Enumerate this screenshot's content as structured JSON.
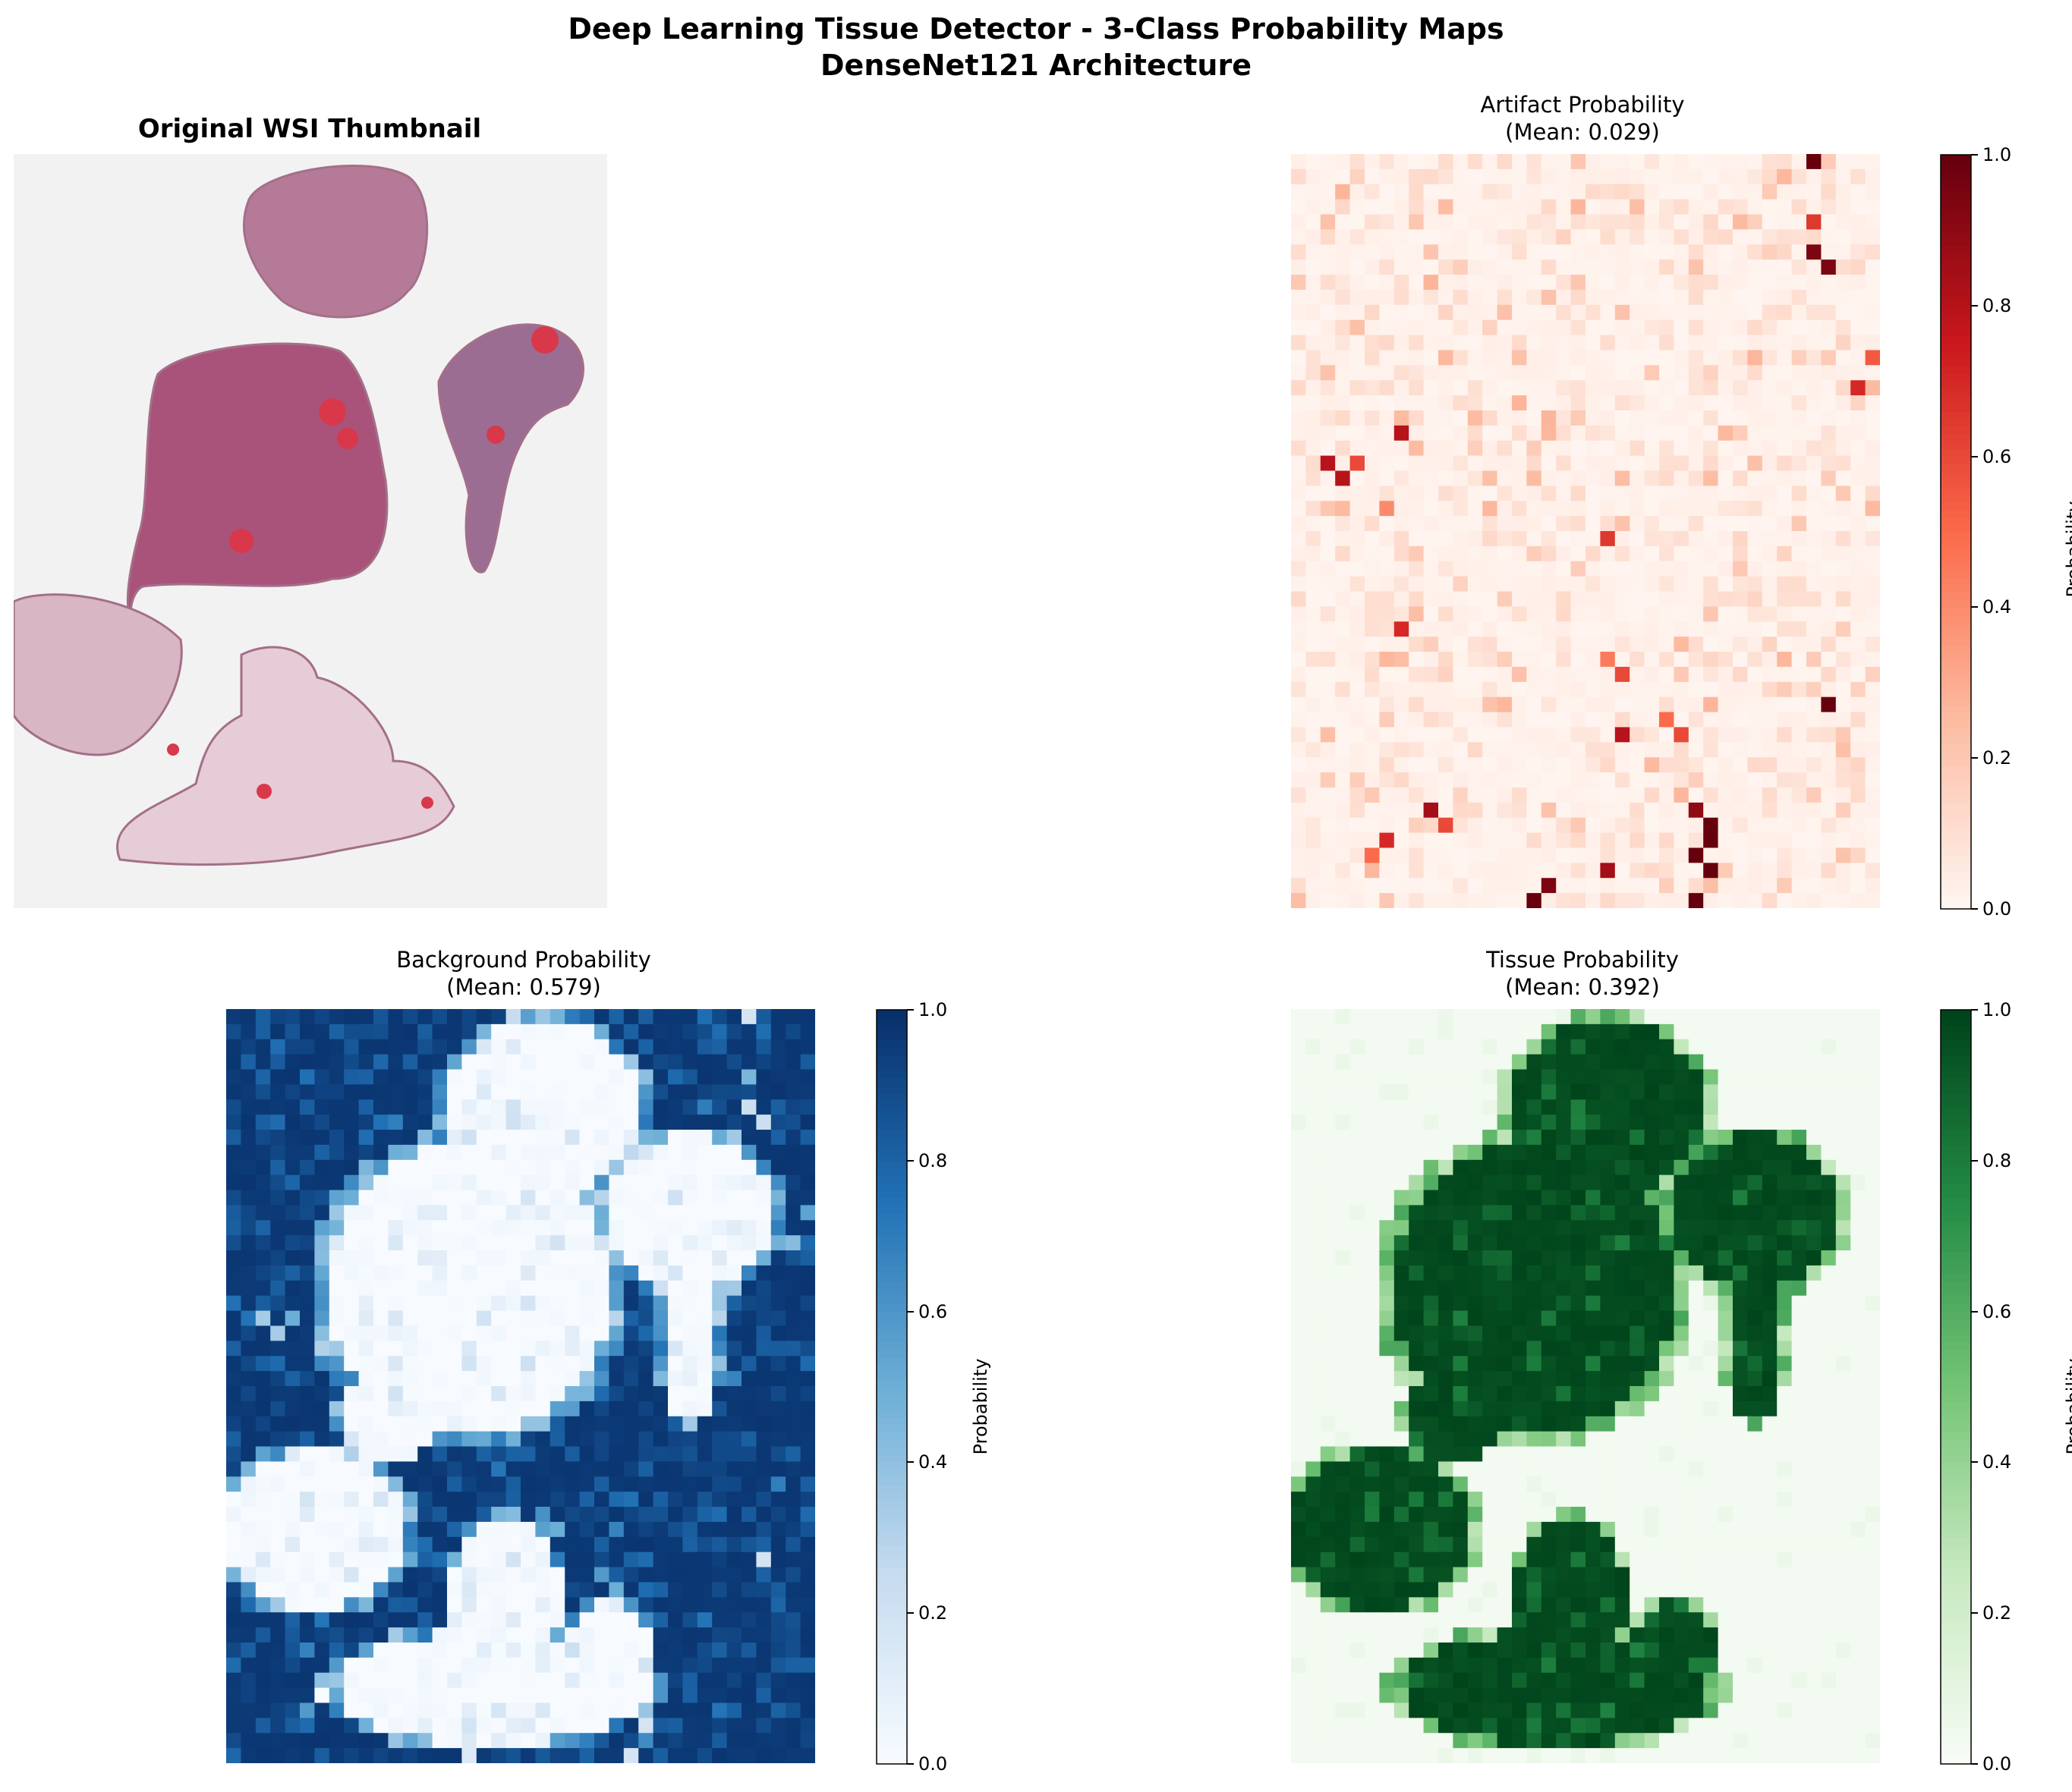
{
  "figure": {
    "title_line1": "Deep Learning Tissue Detector - 3-Class Probability Maps",
    "title_line2": "DenseNet121 Architecture"
  },
  "panels": {
    "thumbnail": {
      "title": "Original WSI Thumbnail"
    },
    "artifact": {
      "title": "Artifact Probability",
      "subtitle": "(Mean: 0.029)",
      "colormap": "Reds",
      "cbar_label": "Probability"
    },
    "background": {
      "title": "Background Probability",
      "subtitle": "(Mean: 0.579)",
      "colormap": "Blues",
      "cbar_label": "Probability"
    },
    "tissue": {
      "title": "Tissue Probability",
      "subtitle": "(Mean: 0.392)",
      "colormap": "Greens",
      "cbar_label": "Probability"
    }
  },
  "colors": {
    "reds": [
      "#fff5f0",
      "#fcbba1",
      "#fb6a4a",
      "#cb181d",
      "#67000d"
    ],
    "blues": [
      "#f7fbff",
      "#c6dbef",
      "#6baed6",
      "#2171b5",
      "#08306b"
    ],
    "greens": [
      "#f7fcf5",
      "#c7e9c0",
      "#74c476",
      "#238b45",
      "#00441b"
    ]
  },
  "chart_data": [
    {
      "type": "heatmap",
      "title": "Artifact Probability",
      "subtitle": "(Mean: 0.029)",
      "colorbar_ticks": [
        "0.0",
        "0.2",
        "0.4",
        "0.6",
        "0.8",
        "1.0"
      ],
      "value_range": [
        0,
        1
      ],
      "grid": [
        50,
        40
      ],
      "hotspots": [
        {
          "col": 35,
          "row": 0,
          "v": 1.0
        },
        {
          "col": 35,
          "row": 4,
          "v": 0.65
        },
        {
          "col": 35,
          "row": 6,
          "v": 0.95
        },
        {
          "col": 36,
          "row": 7,
          "v": 0.95
        },
        {
          "col": 39,
          "row": 13,
          "v": 0.55
        },
        {
          "col": 38,
          "row": 15,
          "v": 0.7
        },
        {
          "col": 7,
          "row": 18,
          "v": 0.8
        },
        {
          "col": 2,
          "row": 20,
          "v": 0.8
        },
        {
          "col": 3,
          "row": 21,
          "v": 0.8
        },
        {
          "col": 4,
          "row": 20,
          "v": 0.6
        },
        {
          "col": 6,
          "row": 23,
          "v": 0.4
        },
        {
          "col": 21,
          "row": 25,
          "v": 0.65
        },
        {
          "col": 7,
          "row": 31,
          "v": 0.7
        },
        {
          "col": 21,
          "row": 33,
          "v": 0.45
        },
        {
          "col": 22,
          "row": 34,
          "v": 0.6
        },
        {
          "col": 36,
          "row": 36,
          "v": 1.0
        },
        {
          "col": 22,
          "row": 38,
          "v": 0.8
        },
        {
          "col": 25,
          "row": 37,
          "v": 0.5
        },
        {
          "col": 26,
          "row": 38,
          "v": 0.6
        },
        {
          "col": 9,
          "row": 43,
          "v": 0.85
        },
        {
          "col": 6,
          "row": 45,
          "v": 0.7
        },
        {
          "col": 27,
          "row": 43,
          "v": 0.9
        },
        {
          "col": 28,
          "row": 44,
          "v": 1.0
        },
        {
          "col": 28,
          "row": 45,
          "v": 1.0
        },
        {
          "col": 28,
          "row": 47,
          "v": 1.0
        },
        {
          "col": 27,
          "row": 46,
          "v": 1.0
        },
        {
          "col": 17,
          "row": 48,
          "v": 0.95
        },
        {
          "col": 16,
          "row": 49,
          "v": 1.0
        },
        {
          "col": 21,
          "row": 47,
          "v": 0.85
        },
        {
          "col": 27,
          "row": 49,
          "v": 1.0
        },
        {
          "col": 10,
          "row": 44,
          "v": 0.6
        },
        {
          "col": 5,
          "row": 46,
          "v": 0.5
        }
      ]
    },
    {
      "type": "heatmap",
      "title": "Background Probability",
      "subtitle": "(Mean: 0.579)",
      "colorbar_ticks": [
        "0.0",
        "0.2",
        "0.4",
        "0.6",
        "0.8",
        "1.0"
      ],
      "value_range": [
        0,
        1
      ],
      "grid": [
        50,
        40
      ]
    },
    {
      "type": "heatmap",
      "title": "Tissue Probability",
      "subtitle": "(Mean: 0.392)",
      "colorbar_ticks": [
        "0.0",
        "0.2",
        "0.4",
        "0.6",
        "0.8",
        "1.0"
      ],
      "value_range": [
        0,
        1
      ],
      "grid": [
        50,
        40
      ]
    }
  ]
}
